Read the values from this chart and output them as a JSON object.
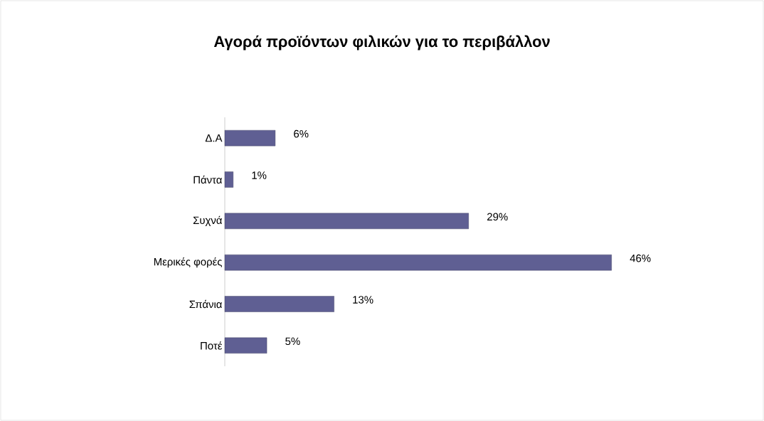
{
  "chart_data": {
    "type": "bar",
    "orientation": "horizontal",
    "title": "Αγορά προϊόντων φιλικών για το περιβάλλον",
    "categories": [
      "Δ.Α",
      "Πάντα",
      "Συχνά",
      "Μερικές φορές",
      "Σπάνια",
      "Ποτέ"
    ],
    "values": [
      6,
      1,
      29,
      46,
      13,
      5
    ],
    "value_labels": [
      "6%",
      "1%",
      "29%",
      "46%",
      "13%",
      "5%"
    ],
    "color": "#5f5f93"
  }
}
